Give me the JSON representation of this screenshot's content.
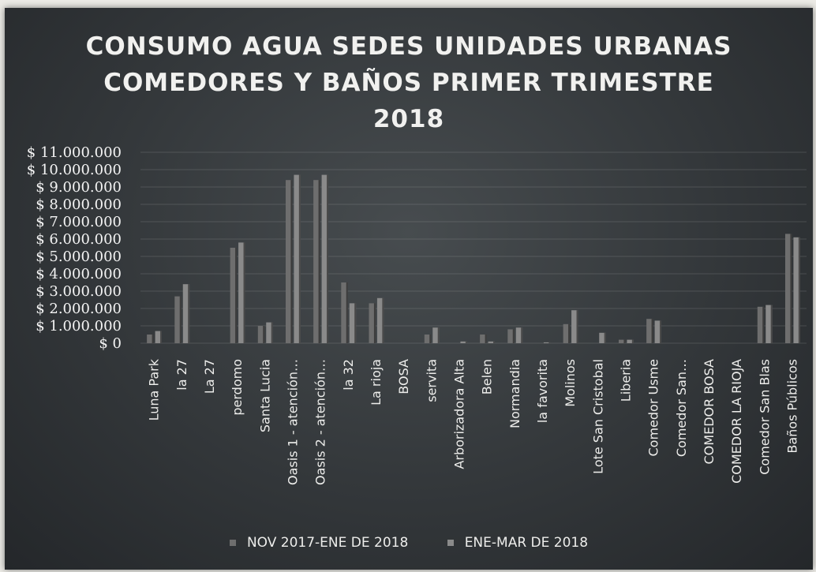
{
  "chart_data": {
    "type": "bar",
    "title_lines": [
      "CONSUMO AGUA SEDES UNIDADES URBANAS",
      "COMEDORES Y BAÑOS PRIMER TRIMESTRE",
      "2018"
    ],
    "categories": [
      "Luna Park",
      "la 27",
      "La 27",
      "perdomo",
      "Santa Lucia",
      "Oasis 1 - atención…",
      "Oasis 2 - atención…",
      "la 32",
      "La rioja",
      "BOSA",
      "servita",
      "Arborizadora Alta",
      "Belen",
      "Normandia",
      "la favorita",
      "Molinos",
      "Lote San Cristobal",
      "Liberia",
      "Comedor Usme",
      "Comedor San…",
      "COMEDOR BOSA",
      "COMEDOR LA RIOJA",
      "Comedor San Blas",
      "Baños Públicos"
    ],
    "series": [
      {
        "name": "NOV 2017-ENE DE 2018",
        "color": "#6e6e6e",
        "values": [
          500000,
          2700000,
          0,
          5500000,
          1000000,
          9400000,
          9400000,
          3500000,
          2300000,
          0,
          500000,
          0,
          500000,
          800000,
          0,
          1100000,
          0,
          200000,
          1400000,
          0,
          0,
          0,
          2100000,
          6300000
        ]
      },
      {
        "name": "ENE-MAR DE 2018",
        "color": "#8a8a8a",
        "values": [
          700000,
          3400000,
          0,
          5800000,
          1200000,
          9700000,
          9700000,
          2300000,
          2600000,
          0,
          900000,
          100000,
          100000,
          900000,
          50000,
          1900000,
          600000,
          200000,
          1300000,
          0,
          0,
          0,
          2200000,
          6100000
        ]
      }
    ],
    "yticks": [
      "$ 0",
      "$ 1.000.000",
      "$ 2.000.000",
      "$ 3.000.000",
      "$ 4.000.000",
      "$ 5.000.000",
      "$ 6.000.000",
      "$ 7.000.000",
      "$ 8.000.000",
      "$ 9.000.000",
      "$ 10.000.000",
      "$ 11.000.000"
    ],
    "ylim": [
      0,
      11000000
    ],
    "grid": true,
    "legend_position": "bottom"
  }
}
